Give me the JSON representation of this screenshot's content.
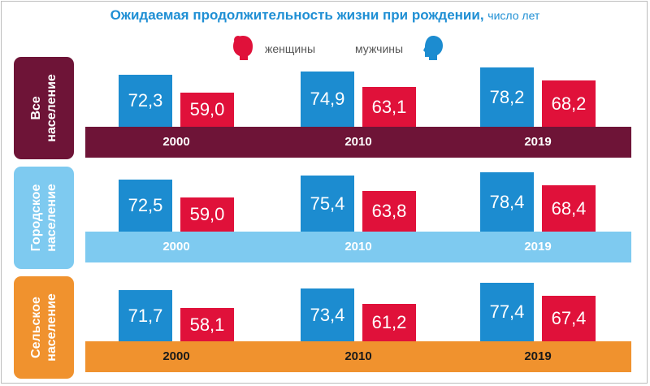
{
  "chart_data": {
    "type": "bar",
    "title": "Ожидаемая продолжительность жизни при рождении,",
    "subtitle": "число лет",
    "legend": [
      {
        "label": "женщины",
        "icon": "female-head-icon",
        "color": "#e0113a"
      },
      {
        "label": "мужчины",
        "icon": "male-head-icon",
        "color": "#1c8cd0"
      }
    ],
    "categories": [
      "2000",
      "2010",
      "2019"
    ],
    "groups": [
      {
        "label_line1": "Все",
        "label_line2": "население",
        "color": "#6e1437",
        "band_color": "#6e1437",
        "year_color": "#ffffff",
        "series": [
          {
            "name": "мужчины",
            "values": [
              72.3,
              74.9,
              78.2
            ],
            "labels": [
              "72,3",
              "74,9",
              "78,2"
            ]
          },
          {
            "name": "женщины",
            "values": [
              59.0,
              63.1,
              68.2
            ],
            "labels": [
              "59,0",
              "63,1",
              "68,2"
            ]
          }
        ]
      },
      {
        "label_line1": "Городское",
        "label_line2": "население",
        "color": "#7ecaf0",
        "band_color": "#7ecaf0",
        "year_color": "#ffffff",
        "series": [
          {
            "name": "мужчины",
            "values": [
              72.5,
              75.4,
              78.4
            ],
            "labels": [
              "72,5",
              "75,4",
              "78,4"
            ]
          },
          {
            "name": "женщины",
            "values": [
              59.0,
              63.8,
              68.4
            ],
            "labels": [
              "59,0",
              "63,8",
              "68,4"
            ]
          }
        ]
      },
      {
        "label_line1": "Сельское",
        "label_line2": "население",
        "color": "#f0922e",
        "band_color": "#f0922e",
        "year_color": "#1a1a1a",
        "series": [
          {
            "name": "мужчины",
            "values": [
              71.7,
              73.4,
              77.4
            ],
            "labels": [
              "71,7",
              "73,4",
              "77,4"
            ]
          },
          {
            "name": "женщины",
            "values": [
              58.1,
              61.2,
              67.4
            ],
            "labels": [
              "58,1",
              "61,2",
              "67,4"
            ]
          }
        ]
      }
    ]
  }
}
